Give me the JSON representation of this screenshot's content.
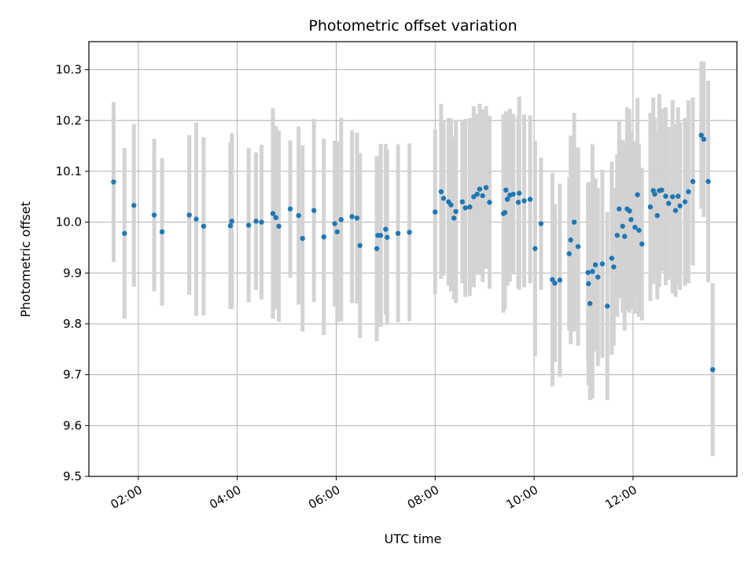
{
  "chart_data": {
    "type": "scatter",
    "title": "Photometric offset variation",
    "xlabel": "UTC time",
    "ylabel": "Photometric offset",
    "x_unit": "hours UTC",
    "xlim": [
      1.0,
      14.1
    ],
    "ylim": [
      9.5,
      10.355
    ],
    "x_ticks": [
      {
        "value": 2,
        "label": "02:00"
      },
      {
        "value": 4,
        "label": "04:00"
      },
      {
        "value": 6,
        "label": "06:00"
      },
      {
        "value": 8,
        "label": "08:00"
      },
      {
        "value": 10,
        "label": "10:00"
      },
      {
        "value": 12,
        "label": "12:00"
      }
    ],
    "y_ticks": [
      9.5,
      9.6,
      9.7,
      9.8,
      9.9,
      10.0,
      10.1,
      10.2,
      10.3
    ],
    "y_tick_labels": [
      "9.5",
      "9.6",
      "9.7",
      "9.8",
      "9.9",
      "10.0",
      "10.1",
      "10.2",
      "10.3"
    ],
    "grid": true,
    "marker_color": "#1f77b4",
    "errorbar_color": "#d3d3d3",
    "points": [
      [
        1.5,
        10.079,
        0.157
      ],
      [
        1.72,
        9.978,
        0.168
      ],
      [
        1.91,
        10.033,
        0.16
      ],
      [
        2.32,
        10.014,
        0.15
      ],
      [
        2.48,
        9.981,
        0.145
      ],
      [
        3.03,
        10.014,
        0.157
      ],
      [
        3.17,
        10.006,
        0.19
      ],
      [
        3.32,
        9.992,
        0.175
      ],
      [
        3.86,
        9.993,
        0.163
      ],
      [
        3.89,
        10.002,
        0.173
      ],
      [
        4.23,
        9.994,
        0.152
      ],
      [
        4.38,
        10.002,
        0.135
      ],
      [
        4.49,
        10.0,
        0.152
      ],
      [
        4.72,
        10.017,
        0.207
      ],
      [
        4.78,
        10.009,
        0.18
      ],
      [
        4.84,
        9.992,
        0.188
      ],
      [
        5.07,
        10.026,
        0.135
      ],
      [
        5.24,
        10.013,
        0.175
      ],
      [
        5.32,
        9.968,
        0.183
      ],
      [
        5.55,
        10.023,
        0.18
      ],
      [
        5.75,
        9.971,
        0.193
      ],
      [
        5.97,
        9.997,
        0.163
      ],
      [
        6.02,
        9.981,
        0.178
      ],
      [
        6.1,
        10.005,
        0.2
      ],
      [
        6.32,
        10.011,
        0.17
      ],
      [
        6.42,
        10.008,
        0.168
      ],
      [
        6.48,
        9.954,
        0.182
      ],
      [
        6.82,
        9.948,
        0.182
      ],
      [
        6.84,
        9.974,
        0.152
      ],
      [
        6.9,
        9.974,
        0.18
      ],
      [
        7.0,
        9.986,
        0.168
      ],
      [
        7.03,
        9.97,
        0.172
      ],
      [
        7.25,
        9.978,
        0.175
      ],
      [
        7.48,
        9.98,
        0.175
      ],
      [
        8.0,
        10.02,
        0.162
      ],
      [
        8.12,
        10.06,
        0.172
      ],
      [
        8.17,
        10.047,
        0.152
      ],
      [
        8.27,
        10.04,
        0.165
      ],
      [
        8.32,
        10.034,
        0.17
      ],
      [
        8.38,
        10.008,
        0.16
      ],
      [
        8.42,
        10.021,
        0.18
      ],
      [
        8.55,
        10.04,
        0.16
      ],
      [
        8.61,
        10.028,
        0.175
      ],
      [
        8.7,
        10.03,
        0.175
      ],
      [
        8.78,
        10.05,
        0.178
      ],
      [
        8.85,
        10.055,
        0.158
      ],
      [
        8.9,
        10.065,
        0.168
      ],
      [
        8.96,
        10.052,
        0.17
      ],
      [
        9.03,
        10.068,
        0.16
      ],
      [
        9.1,
        10.039,
        0.17
      ],
      [
        9.38,
        10.017,
        0.195
      ],
      [
        9.41,
        10.019,
        0.19
      ],
      [
        9.43,
        10.063,
        0.155
      ],
      [
        9.46,
        10.045,
        0.17
      ],
      [
        9.51,
        10.053,
        0.17
      ],
      [
        9.58,
        10.055,
        0.158
      ],
      [
        9.68,
        10.039,
        0.17
      ],
      [
        9.7,
        10.057,
        0.19
      ],
      [
        9.8,
        10.042,
        0.17
      ],
      [
        9.92,
        10.045,
        0.165
      ],
      [
        10.02,
        9.948,
        0.212
      ],
      [
        10.14,
        9.997,
        0.13
      ],
      [
        10.37,
        9.887,
        0.21
      ],
      [
        10.42,
        9.88,
        0.155
      ],
      [
        10.52,
        9.886,
        0.19
      ],
      [
        10.71,
        9.938,
        0.15
      ],
      [
        10.74,
        9.965,
        0.205
      ],
      [
        10.81,
        10.0,
        0.215
      ],
      [
        10.89,
        9.952,
        0.195
      ],
      [
        11.09,
        9.901,
        0.175
      ],
      [
        11.1,
        9.879,
        0.2
      ],
      [
        11.13,
        9.84,
        0.19
      ],
      [
        11.18,
        9.903,
        0.25
      ],
      [
        11.24,
        9.916,
        0.17
      ],
      [
        11.29,
        9.892,
        0.175
      ],
      [
        11.38,
        9.918,
        0.185
      ],
      [
        11.48,
        9.835,
        0.185
      ],
      [
        11.57,
        9.929,
        0.19
      ],
      [
        11.61,
        9.912,
        0.155
      ],
      [
        11.68,
        9.974,
        0.16
      ],
      [
        11.72,
        10.026,
        0.175
      ],
      [
        11.79,
        9.992,
        0.17
      ],
      [
        11.83,
        9.972,
        0.185
      ],
      [
        11.88,
        10.026,
        0.2
      ],
      [
        11.93,
        10.022,
        0.2
      ],
      [
        11.96,
        10.005,
        0.175
      ],
      [
        12.04,
        9.99,
        0.17
      ],
      [
        12.09,
        10.054,
        0.19
      ],
      [
        12.12,
        9.984,
        0.17
      ],
      [
        12.18,
        9.957,
        0.15
      ],
      [
        12.35,
        10.03,
        0.185
      ],
      [
        12.41,
        10.062,
        0.183
      ],
      [
        12.44,
        10.055,
        0.15
      ],
      [
        12.49,
        10.013,
        0.165
      ],
      [
        12.53,
        10.062,
        0.19
      ],
      [
        12.58,
        10.063,
        0.16
      ],
      [
        12.66,
        10.051,
        0.175
      ],
      [
        12.72,
        10.037,
        0.15
      ],
      [
        12.8,
        10.05,
        0.19
      ],
      [
        12.86,
        10.023,
        0.17
      ],
      [
        12.91,
        10.051,
        0.175
      ],
      [
        12.95,
        10.032,
        0.165
      ],
      [
        13.05,
        10.04,
        0.165
      ],
      [
        13.12,
        10.06,
        0.18
      ],
      [
        13.21,
        10.08,
        0.165
      ],
      [
        13.38,
        10.171,
        0.145
      ],
      [
        13.43,
        10.163,
        0.153
      ],
      [
        13.52,
        10.08,
        0.198
      ],
      [
        13.61,
        9.71,
        0.17
      ]
    ]
  }
}
